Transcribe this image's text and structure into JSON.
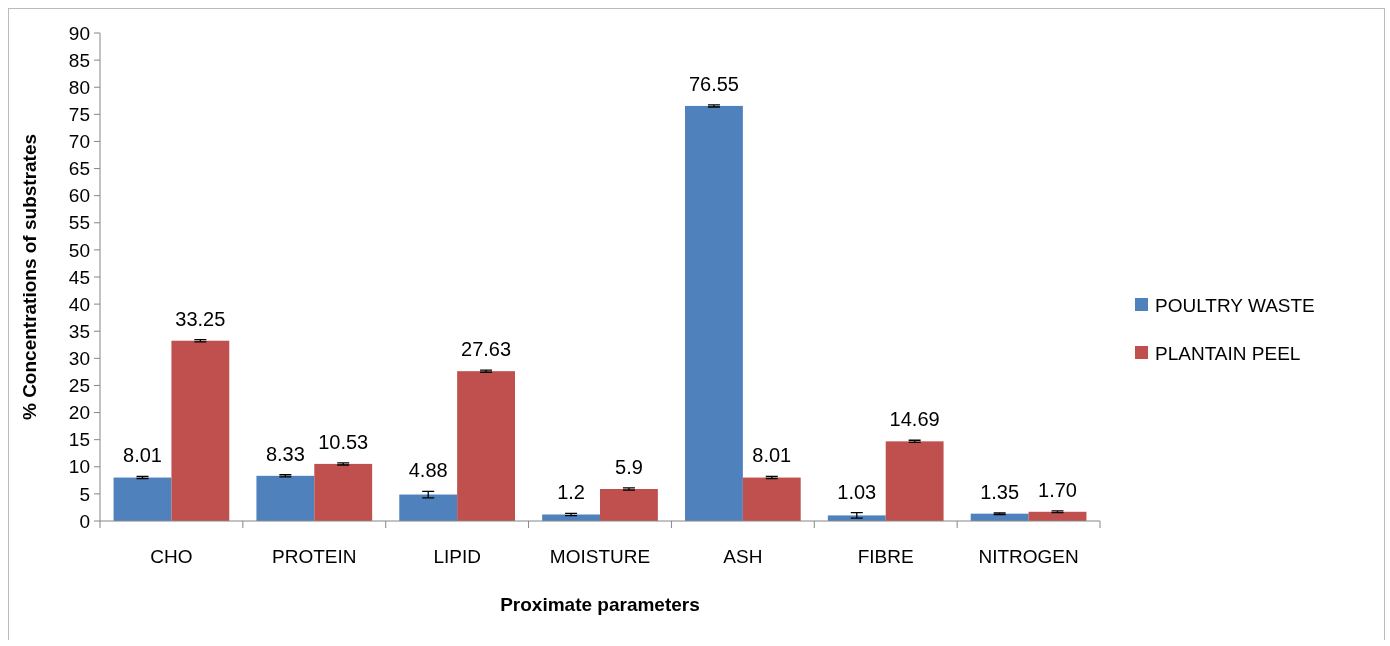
{
  "chart_data": {
    "type": "bar",
    "xlabel": "Proximate parameters",
    "ylabel": "% Concentrations of substrates",
    "categories": [
      "CHO",
      "PROTEIN",
      "LIPID",
      "MOISTURE",
      "ASH",
      "FIBRE",
      "NITROGEN"
    ],
    "series": [
      {
        "name": "POULTRY WASTE",
        "color": "#4f81bd",
        "values": [
          8.01,
          8.33,
          4.88,
          1.2,
          76.55,
          1.03,
          1.35
        ],
        "errors": [
          0.2,
          0.2,
          0.6,
          0.2,
          0.2,
          0.5,
          0.15
        ],
        "value_labels": [
          "8.01",
          "8.33",
          "4.88",
          "1.2",
          "76.55",
          "1.03",
          "1.35"
        ]
      },
      {
        "name": "PLANTAIN PEEL",
        "color": "#c0504d",
        "values": [
          33.25,
          10.53,
          27.63,
          5.9,
          8.01,
          14.69,
          1.7
        ],
        "errors": [
          0.2,
          0.2,
          0.2,
          0.2,
          0.2,
          0.2,
          0.15
        ],
        "value_labels": [
          "33.25",
          "10.53",
          "27.63",
          "5.9",
          "8.01",
          "14.69",
          "1.70"
        ]
      }
    ],
    "ylim": [
      0,
      90
    ],
    "yticks": [
      0,
      5,
      10,
      15,
      20,
      25,
      30,
      35,
      40,
      45,
      50,
      55,
      60,
      65,
      70,
      75,
      80,
      85,
      90
    ],
    "grid": false,
    "legend": "right"
  }
}
